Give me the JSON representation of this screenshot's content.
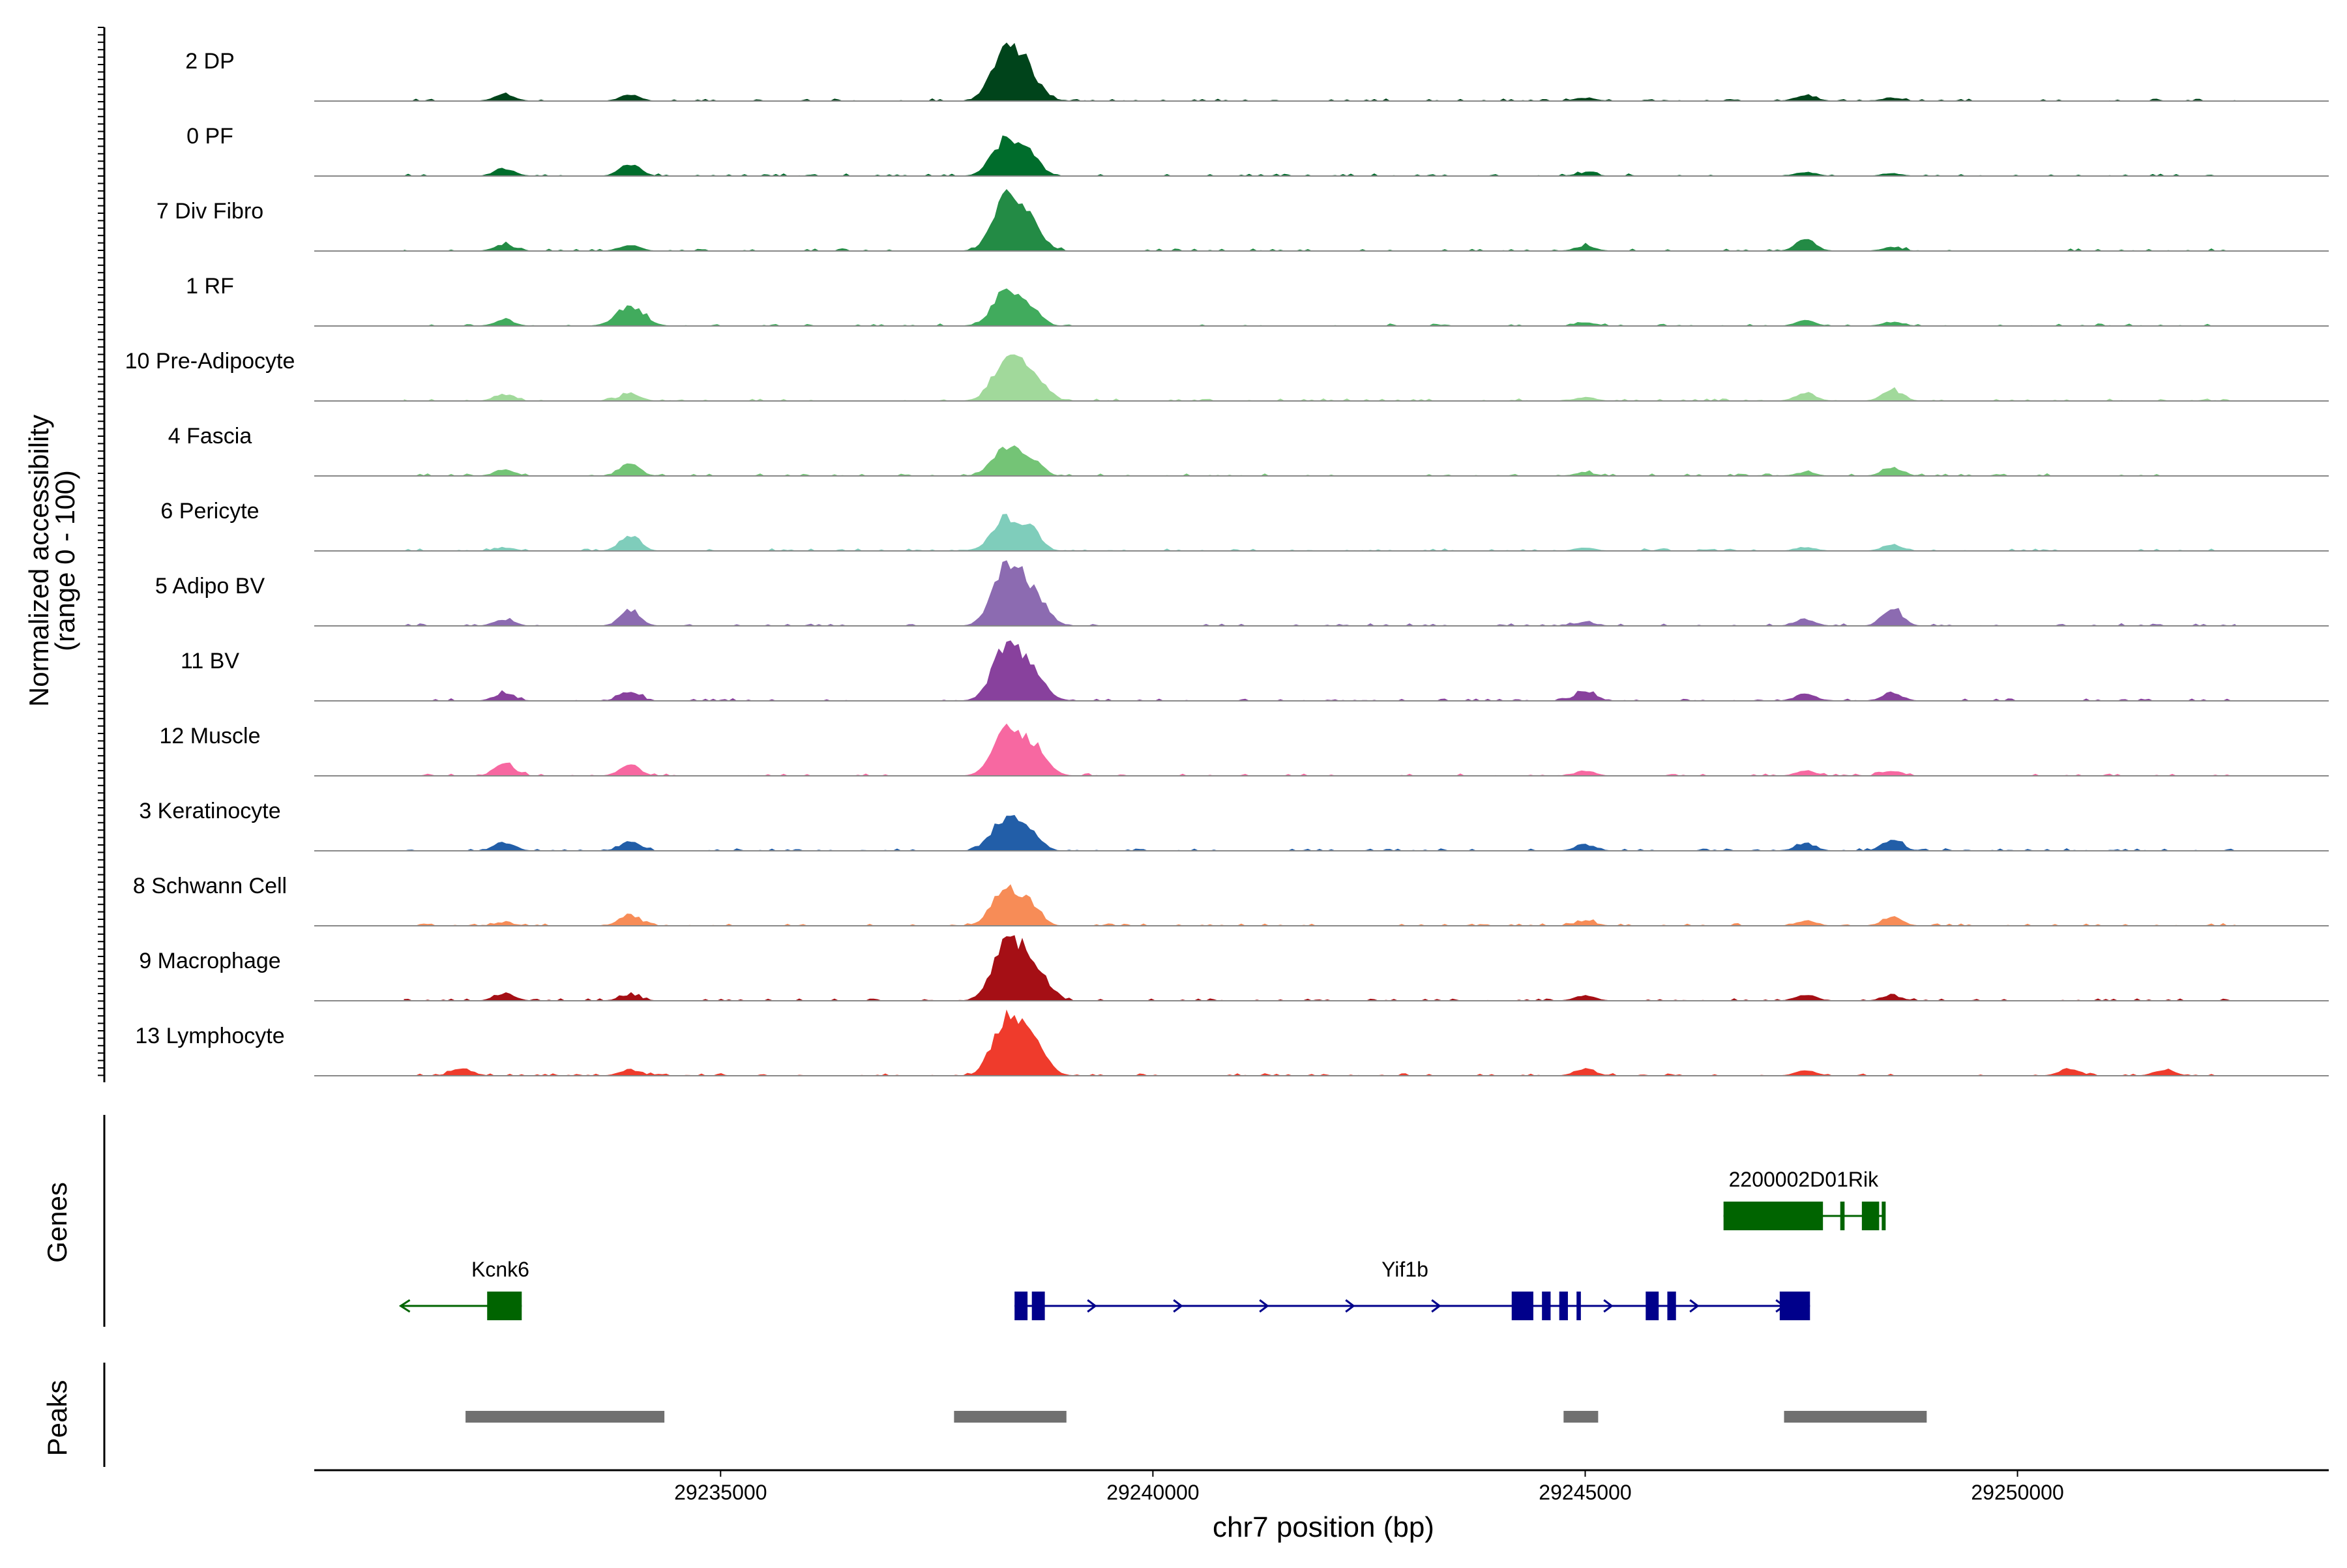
{
  "chart_data": {
    "type": "area",
    "title": "",
    "chromosome": "chr7",
    "xlabel": "chr7 position (bp)",
    "ylabel_line1": "Normalized accessibility",
    "ylabel_line2": "(range 0 - 100)",
    "y_range": [
      0,
      100
    ],
    "xlim": [
      29230300,
      29253600
    ],
    "x_ticks": [
      29235000,
      29240000,
      29245000,
      29250000
    ],
    "x_tick_labels": [
      "29235000",
      "29240000",
      "29245000",
      "29250000"
    ],
    "tracks": [
      {
        "label": "2 DP",
        "color": "#00441b",
        "peaks": [
          [
            29232500,
            12
          ],
          [
            29233950,
            10
          ],
          [
            29238300,
            85
          ],
          [
            29238550,
            40
          ],
          [
            29245000,
            5
          ],
          [
            29247550,
            10
          ],
          [
            29248550,
            5
          ]
        ]
      },
      {
        "label": "0 PF",
        "color": "#006d2c",
        "peaks": [
          [
            29232500,
            12
          ],
          [
            29233950,
            20
          ],
          [
            29238300,
            60
          ],
          [
            29238600,
            30
          ],
          [
            29245000,
            5
          ],
          [
            29247550,
            6
          ],
          [
            29248550,
            4
          ]
        ]
      },
      {
        "label": "7 Div Fibro",
        "color": "#238b45",
        "peaks": [
          [
            29232500,
            10
          ],
          [
            29233950,
            10
          ],
          [
            29238300,
            75
          ],
          [
            29238550,
            45
          ],
          [
            29245000,
            8
          ],
          [
            29247550,
            18
          ],
          [
            29248550,
            6
          ]
        ]
      },
      {
        "label": "1 RF",
        "color": "#41ab5d",
        "peaks": [
          [
            29232500,
            10
          ],
          [
            29233950,
            32
          ],
          [
            29238300,
            55
          ],
          [
            29238600,
            25
          ],
          [
            29245000,
            6
          ],
          [
            29247550,
            8
          ],
          [
            29248550,
            6
          ]
        ]
      },
      {
        "label": "10 Pre-Adipocyte",
        "color": "#a1d99b",
        "peaks": [
          [
            29232500,
            10
          ],
          [
            29233950,
            12
          ],
          [
            29238300,
            65
          ],
          [
            29238600,
            40
          ],
          [
            29245000,
            6
          ],
          [
            29247550,
            14
          ],
          [
            29248550,
            18
          ]
        ]
      },
      {
        "label": "4 Fascia",
        "color": "#74c476",
        "peaks": [
          [
            29232500,
            10
          ],
          [
            29233950,
            20
          ],
          [
            29238300,
            45
          ],
          [
            29238600,
            25
          ],
          [
            29245000,
            5
          ],
          [
            29247550,
            6
          ],
          [
            29248550,
            14
          ]
        ]
      },
      {
        "label": "6 Pericyte",
        "color": "#7fcdbb",
        "peaks": [
          [
            29232500,
            5
          ],
          [
            29233950,
            25
          ],
          [
            29238300,
            55
          ],
          [
            29238600,
            30
          ],
          [
            29245000,
            5
          ],
          [
            29247550,
            6
          ],
          [
            29248550,
            10
          ]
        ]
      },
      {
        "label": "5 Adipo BV",
        "color": "#8c6bb1",
        "peaks": [
          [
            29232500,
            10
          ],
          [
            29233950,
            25
          ],
          [
            29238300,
            90
          ],
          [
            29238600,
            55
          ],
          [
            29245000,
            6
          ],
          [
            29247550,
            10
          ],
          [
            29248550,
            28
          ]
        ]
      },
      {
        "label": "11 BV",
        "color": "#88419d",
        "peaks": [
          [
            29232500,
            12
          ],
          [
            29233950,
            16
          ],
          [
            29238300,
            85
          ],
          [
            29238600,
            45
          ],
          [
            29245000,
            16
          ],
          [
            29247550,
            12
          ],
          [
            29248550,
            12
          ]
        ]
      },
      {
        "label": "12 Muscle",
        "color": "#f768a1",
        "peaks": [
          [
            29232500,
            20
          ],
          [
            29233950,
            18
          ],
          [
            29238300,
            70
          ],
          [
            29238600,
            45
          ],
          [
            29245000,
            8
          ],
          [
            29247550,
            8
          ],
          [
            29248550,
            8
          ]
        ]
      },
      {
        "label": "3 Keratinocyte",
        "color": "#225ea8",
        "peaks": [
          [
            29232500,
            14
          ],
          [
            29233950,
            14
          ],
          [
            29238300,
            55
          ],
          [
            29238600,
            25
          ],
          [
            29245000,
            10
          ],
          [
            29247550,
            12
          ],
          [
            29248550,
            18
          ]
        ]
      },
      {
        "label": "8 Schwann Cell",
        "color": "#f78c57",
        "peaks": [
          [
            29232500,
            5
          ],
          [
            29233950,
            18
          ],
          [
            29238300,
            60
          ],
          [
            29238600,
            30
          ],
          [
            29245000,
            8
          ],
          [
            29247550,
            8
          ],
          [
            29248550,
            14
          ]
        ]
      },
      {
        "label": "9 Macrophage",
        "color": "#a50f15",
        "peaks": [
          [
            29232500,
            12
          ],
          [
            29233950,
            10
          ],
          [
            29238300,
            90
          ],
          [
            29238600,
            60
          ],
          [
            29245000,
            8
          ],
          [
            29247550,
            10
          ],
          [
            29248550,
            8
          ]
        ]
      },
      {
        "label": "13 Lymphocyte",
        "color": "#ef3b2c",
        "peaks": [
          [
            29232000,
            12
          ],
          [
            29233950,
            10
          ],
          [
            29238300,
            90
          ],
          [
            29238600,
            50
          ],
          [
            29245000,
            12
          ],
          [
            29247550,
            8
          ],
          [
            29250600,
            12
          ],
          [
            29251700,
            10
          ]
        ]
      }
    ],
    "genes_label": "Genes",
    "genes": [
      {
        "name": "Kcnk6",
        "strand": "-",
        "color": "#006400",
        "start": 29231300,
        "end": 29232700,
        "exons": [
          [
            29232300,
            29232700
          ]
        ],
        "row": 2
      },
      {
        "name": "Yif1b",
        "strand": "+",
        "color": "#00008b",
        "start": 29238400,
        "end": 29247600,
        "exons": [
          [
            29238400,
            29238550
          ],
          [
            29238600,
            29238750
          ],
          [
            29244150,
            29244400
          ],
          [
            29244500,
            29244600
          ],
          [
            29244700,
            29244800
          ],
          [
            29244900,
            29244950
          ],
          [
            29245700,
            29245850
          ],
          [
            29245950,
            29246050
          ],
          [
            29247250,
            29247600
          ]
        ],
        "row": 2
      },
      {
        "name": "2200002D01Rik",
        "strand": "+",
        "color": "#006400",
        "start": 29246600,
        "end": 29248450,
        "exons": [
          [
            29246600,
            29247750
          ],
          [
            29247950,
            29248000
          ],
          [
            29248200,
            29248400
          ],
          [
            29248430,
            29248450
          ]
        ],
        "row": 1
      }
    ],
    "peaks_label": "Peaks",
    "peak_regions": [
      [
        29232050,
        29234350
      ],
      [
        29237700,
        29239000
      ],
      [
        29244750,
        29245150
      ],
      [
        29247300,
        29248950
      ]
    ]
  }
}
